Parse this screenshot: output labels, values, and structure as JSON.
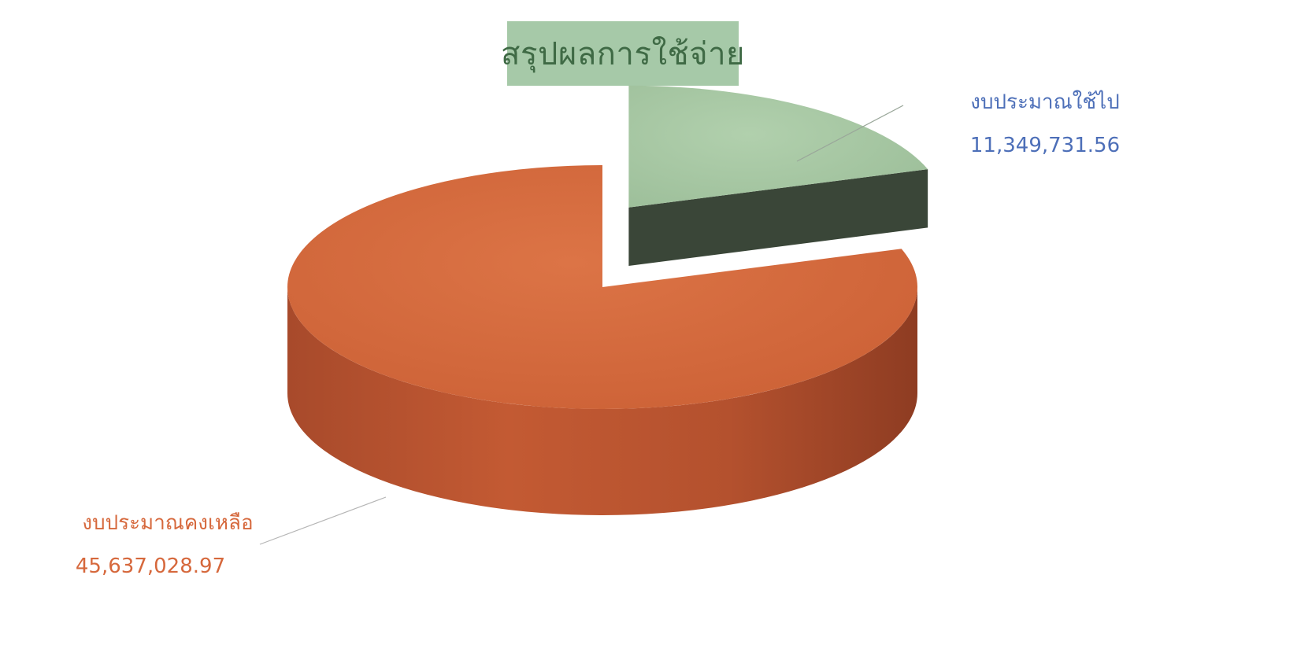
{
  "chart_data": {
    "type": "pie",
    "title": "สรุปผลการใช้จ่าย",
    "slices": [
      {
        "label": "งบประมาณใช้ไป",
        "value": 11349731.56,
        "display_value": "11,349,731.56",
        "color": "#a7c8a4",
        "label_color": "#4d6fb8",
        "exploded": true
      },
      {
        "label": "งบประมาณคงเหลือ",
        "value": 45637028.97,
        "display_value": "45,637,028.97",
        "color": "#d2683e",
        "label_color": "#d6683c",
        "exploded": false
      }
    ],
    "legend": "none",
    "style": "3d"
  }
}
